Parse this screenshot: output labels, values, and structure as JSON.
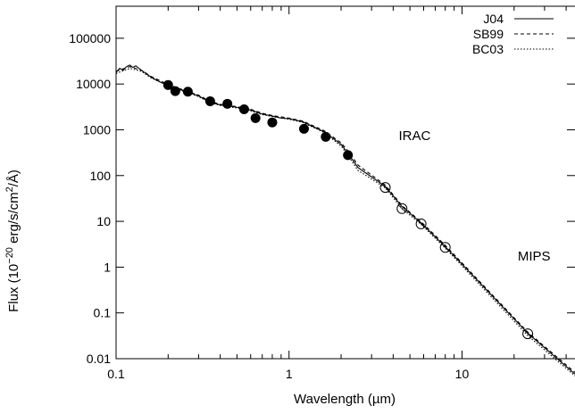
{
  "chart_data": {
    "type": "line",
    "xlabel": "Wavelength (µm)",
    "ylabel_parts": [
      "Flux (10",
      "−20",
      " erg/s/cm",
      "2",
      "/Å)"
    ],
    "xscale": "log",
    "yscale": "log",
    "xlim": [
      0.1,
      45
    ],
    "ylim": [
      0.01,
      500000
    ],
    "x_ticks": [
      0.1,
      1,
      10
    ],
    "x_tick_labels": [
      "0.1",
      "1",
      "10"
    ],
    "y_ticks": [
      0.01,
      0.1,
      1,
      10,
      100,
      1000,
      10000,
      100000
    ],
    "y_tick_labels": [
      "0.01",
      "0.1",
      "1",
      "10",
      "100",
      "1000",
      "10000",
      "100000"
    ],
    "legend_position": "top-right",
    "series": [
      {
        "name": "J04",
        "style": "solid",
        "points": [
          [
            0.1,
            18000
          ],
          [
            0.105,
            22000
          ],
          [
            0.11,
            20000
          ],
          [
            0.115,
            24000
          ],
          [
            0.12,
            26000
          ],
          [
            0.125,
            23000
          ],
          [
            0.13,
            25000
          ],
          [
            0.14,
            20000
          ],
          [
            0.16,
            14000
          ],
          [
            0.18,
            11000
          ],
          [
            0.2,
            9500
          ],
          [
            0.22,
            8000
          ],
          [
            0.25,
            7000
          ],
          [
            0.3,
            5500
          ],
          [
            0.35,
            4000
          ],
          [
            0.4,
            3500
          ],
          [
            0.45,
            3300
          ],
          [
            0.5,
            3100
          ],
          [
            0.6,
            2700
          ],
          [
            0.7,
            2200
          ],
          [
            0.8,
            2000
          ],
          [
            0.9,
            1800
          ],
          [
            1.0,
            1750
          ],
          [
            1.2,
            1500
          ],
          [
            1.6,
            900
          ],
          [
            2.0,
            480
          ],
          [
            2.2,
            300
          ],
          [
            2.5,
            150
          ],
          [
            3.6,
            58
          ],
          [
            4.5,
            21
          ],
          [
            5.8,
            9.2
          ],
          [
            8.0,
            2.8
          ],
          [
            24,
            0.036
          ],
          [
            45,
            0.0046
          ]
        ]
      },
      {
        "name": "SB99",
        "style": "dashed",
        "points": [
          [
            0.1,
            19000
          ],
          [
            0.12,
            24000
          ],
          [
            0.14,
            20000
          ],
          [
            0.16,
            14500
          ],
          [
            0.2,
            9800
          ],
          [
            0.25,
            7200
          ],
          [
            0.3,
            5700
          ],
          [
            0.35,
            4200
          ],
          [
            0.4,
            3600
          ],
          [
            0.5,
            3200
          ],
          [
            0.6,
            2800
          ],
          [
            0.7,
            2300
          ],
          [
            0.8,
            2050
          ],
          [
            1.0,
            1800
          ],
          [
            1.2,
            1550
          ],
          [
            1.6,
            950
          ],
          [
            2.0,
            520
          ],
          [
            2.2,
            340
          ],
          [
            2.5,
            170
          ],
          [
            3.6,
            62
          ],
          [
            4.5,
            22
          ],
          [
            5.8,
            9.8
          ],
          [
            8.0,
            3.0
          ],
          [
            24,
            0.038
          ],
          [
            45,
            0.005
          ]
        ]
      },
      {
        "name": "BC03",
        "style": "dotted",
        "points": [
          [
            0.1,
            17000
          ],
          [
            0.12,
            22000
          ],
          [
            0.14,
            19000
          ],
          [
            0.16,
            13500
          ],
          [
            0.2,
            9200
          ],
          [
            0.25,
            6800
          ],
          [
            0.3,
            5300
          ],
          [
            0.35,
            3900
          ],
          [
            0.4,
            3400
          ],
          [
            0.5,
            3000
          ],
          [
            0.6,
            2600
          ],
          [
            0.7,
            2150
          ],
          [
            0.8,
            1950
          ],
          [
            1.0,
            1700
          ],
          [
            1.2,
            1450
          ],
          [
            1.6,
            870
          ],
          [
            2.0,
            440
          ],
          [
            2.2,
            270
          ],
          [
            2.5,
            130
          ],
          [
            3.6,
            54
          ],
          [
            4.5,
            19
          ],
          [
            5.8,
            8.6
          ],
          [
            8.0,
            2.6
          ],
          [
            24,
            0.032
          ],
          [
            45,
            0.0042
          ]
        ]
      }
    ],
    "observed_points": [
      [
        0.2,
        9500
      ],
      [
        0.22,
        7000
      ],
      [
        0.26,
        6800
      ],
      [
        0.35,
        4200
      ],
      [
        0.44,
        3700
      ],
      [
        0.55,
        2800
      ],
      [
        0.64,
        1800
      ],
      [
        0.8,
        1450
      ],
      [
        1.22,
        1050
      ],
      [
        1.63,
        700
      ],
      [
        2.19,
        280
      ]
    ],
    "ir_points": [
      [
        3.6,
        55
      ],
      [
        4.5,
        19
      ],
      [
        5.8,
        8.8
      ],
      [
        8.0,
        2.7
      ],
      [
        24,
        0.035
      ]
    ],
    "annotations": [
      {
        "text": "IRAC",
        "x": 4.3,
        "y": 600
      },
      {
        "text": "MIPS",
        "x": 21,
        "y": 1.4
      }
    ]
  }
}
